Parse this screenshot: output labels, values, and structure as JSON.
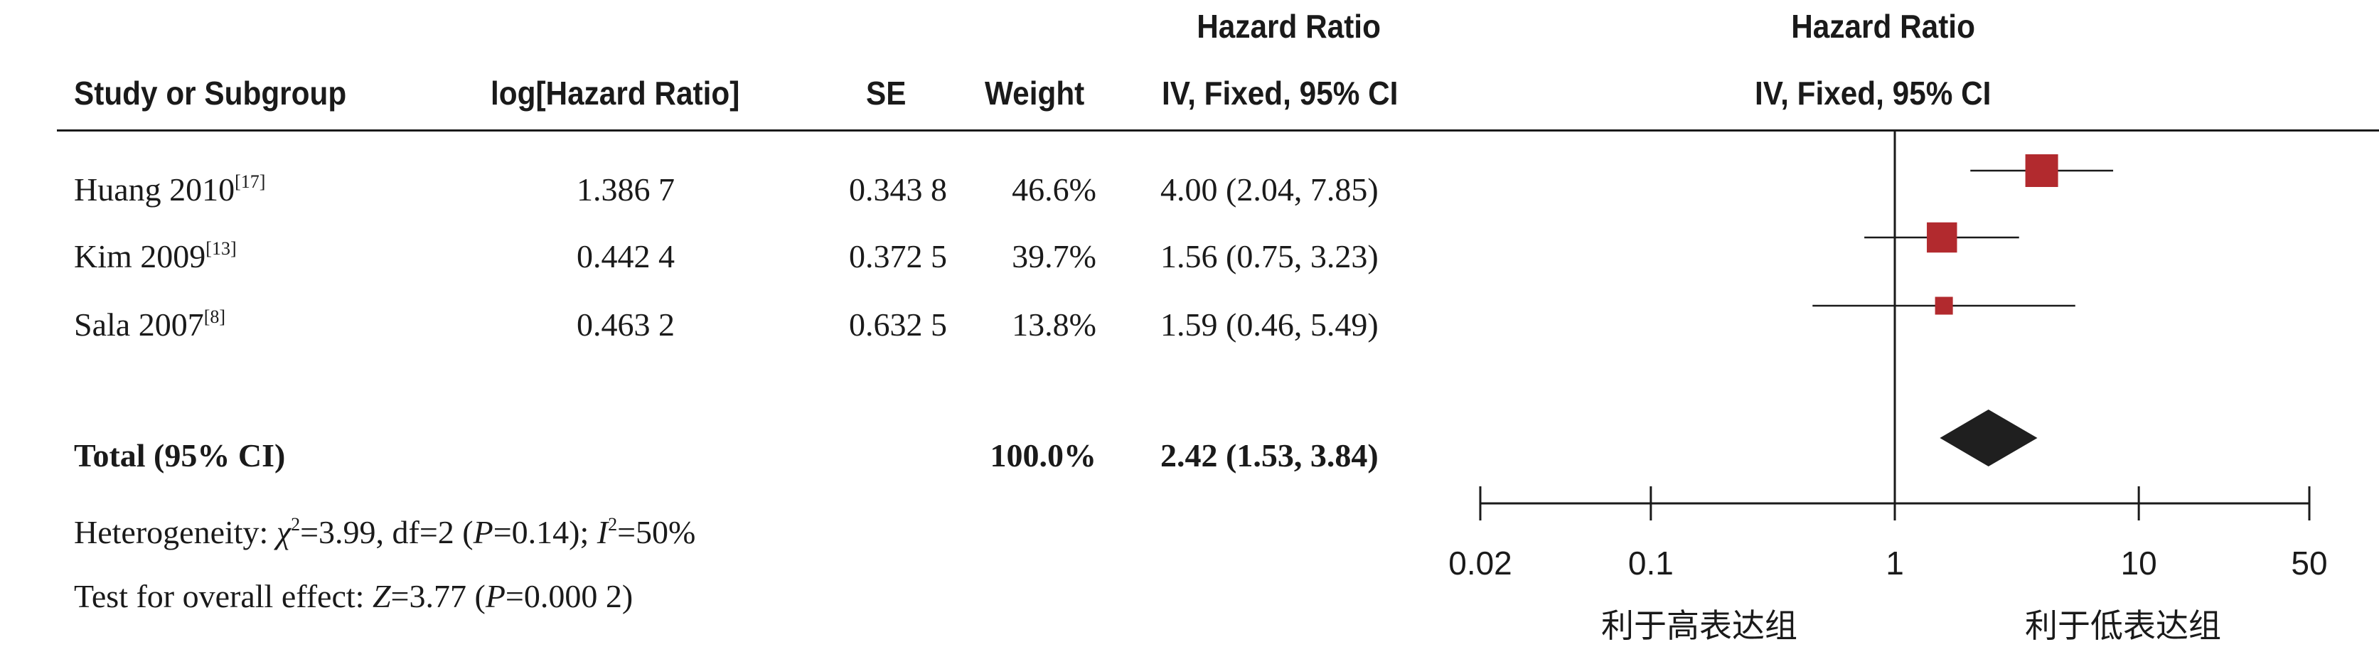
{
  "headers": {
    "study": "Study or Subgroup",
    "loghr": "log[Hazard Ratio]",
    "se": "SE",
    "weight": "Weight",
    "hr_top": "Hazard Ratio",
    "hr_sub": "IV, Fixed, 95% CI",
    "plot_top": "Hazard Ratio",
    "plot_sub": "IV, Fixed, 95% CI"
  },
  "rows": [
    {
      "study": "Huang 2010",
      "ref": "[17]",
      "loghr": "1.386 7",
      "se": "0.343 8",
      "weight": "46.6%",
      "ci": "4.00 (2.04, 7.85)"
    },
    {
      "study": "Kim 2009",
      "ref": "[13]",
      "loghr": "0.442 4",
      "se": "0.372 5",
      "weight": "39.7%",
      "ci": "1.56 (0.75, 3.23)"
    },
    {
      "study": "Sala 2007",
      "ref": "[8]",
      "loghr": "0.463 2",
      "se": "0.632 5",
      "weight": "13.8%",
      "ci": "1.59 (0.46, 5.49)"
    }
  ],
  "total": {
    "label": "Total (95% CI)",
    "weight": "100.0%",
    "ci": "2.42 (1.53, 3.84)"
  },
  "heterogeneity": {
    "prefix": "Heterogeneity: ",
    "chi_sym": "χ",
    "chi_exp": "2",
    "chi_rest": "=3.99, df=2 (",
    "p_sym": "P",
    "p_rest": "=0.14); ",
    "i_sym": "I",
    "i_exp": "2",
    "i_rest": "=50%"
  },
  "overall": {
    "prefix": "Test for overall effect: ",
    "z_sym": "Z",
    "z_rest": "=3.77 (",
    "p_sym": "P",
    "p_rest": "=0.000 2)"
  },
  "colors": {
    "study_marker": "#b22a2e",
    "diamond": "#1f1f1f",
    "line": "#1a1a1a"
  },
  "chart_data": {
    "type": "forest",
    "x_scale": "log",
    "xlim": [
      0.02,
      50
    ],
    "x_ticks": [
      0.02,
      0.1,
      1,
      10,
      50
    ],
    "x_tick_labels": [
      "0.02",
      "0.1",
      "1",
      "10",
      "50"
    ],
    "reference_line": 1,
    "favours_left": "利于高表达组",
    "favours_right": "利于低表达组",
    "studies": [
      {
        "name": "Huang 2010",
        "hr": 4.0,
        "lower": 2.04,
        "upper": 7.85,
        "weight": 46.6
      },
      {
        "name": "Kim 2009",
        "hr": 1.56,
        "lower": 0.75,
        "upper": 3.23,
        "weight": 39.7
      },
      {
        "name": "Sala 2007",
        "hr": 1.59,
        "lower": 0.46,
        "upper": 5.49,
        "weight": 13.8
      }
    ],
    "pooled": {
      "hr": 2.42,
      "lower": 1.53,
      "upper": 3.84
    }
  }
}
